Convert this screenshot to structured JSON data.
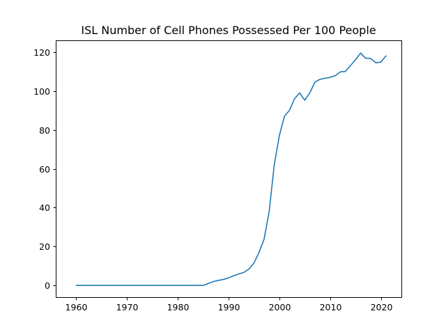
{
  "chart_data": {
    "type": "line",
    "title": "ISL Number of Cell Phones Possessed Per 100 People",
    "xlabel": "",
    "ylabel": "",
    "xlim": [
      1955.95,
      2024.05
    ],
    "ylim": [
      -6.0,
      126.0
    ],
    "x_ticks": [
      1960,
      1970,
      1980,
      1990,
      2000,
      2010,
      2020
    ],
    "y_ticks": [
      0,
      20,
      40,
      60,
      80,
      100,
      120
    ],
    "grid": false,
    "line_color": "#1f77b4",
    "series": [
      {
        "x": [
          1960,
          1961,
          1962,
          1963,
          1964,
          1965,
          1966,
          1967,
          1968,
          1969,
          1970,
          1971,
          1972,
          1973,
          1974,
          1975,
          1976,
          1977,
          1978,
          1979,
          1980,
          1981,
          1982,
          1983,
          1984,
          1985,
          1986,
          1987,
          1988,
          1989,
          1990,
          1991,
          1992,
          1993,
          1994,
          1995,
          1996,
          1997,
          1998,
          1999,
          2000,
          2001,
          2002,
          2003,
          2004,
          2005,
          2006,
          2007,
          2008,
          2009,
          2010,
          2011,
          2012,
          2013,
          2014,
          2015,
          2016,
          2017,
          2018,
          2019,
          2020,
          2021
        ],
        "values": [
          0,
          0,
          0,
          0,
          0,
          0,
          0,
          0,
          0,
          0,
          0,
          0,
          0,
          0,
          0,
          0,
          0,
          0,
          0,
          0,
          0,
          0,
          0,
          0,
          0,
          0,
          1,
          2,
          2.6,
          3.1,
          3.9,
          5.0,
          5.9,
          6.7,
          8.4,
          11.5,
          17.0,
          23.8,
          38.0,
          62.0,
          77.0,
          87.0,
          90.0,
          96.0,
          99.0,
          95.2,
          99.0,
          104.5,
          106.0,
          106.5,
          107.0,
          107.8,
          109.8,
          110.0,
          113.0,
          116.0,
          119.5,
          116.8,
          116.7,
          114.5,
          114.8,
          118.0
        ]
      }
    ]
  }
}
